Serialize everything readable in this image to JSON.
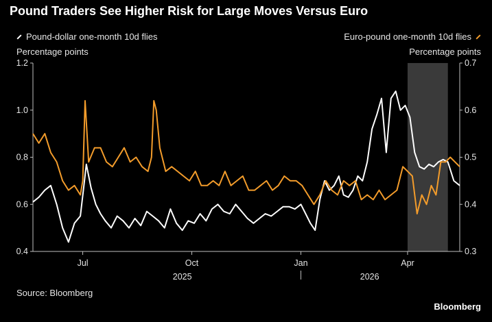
{
  "title": "Pound Traders See Higher Risk for Large Moves Versus Euro",
  "source": "Source: Bloomberg",
  "brand": "Bloomberg",
  "colors": {
    "background": "#000000",
    "gbpusd": "#ffffff",
    "eurgbp": "#f39c2b",
    "shade": "#3a3a3a",
    "axis": "#bfbfbf"
  },
  "chart_data": {
    "type": "line",
    "title": "Pound Traders See Higher Risk for Large Moves Versus Euro",
    "x_domain": [
      "2025-05-20",
      "2026-05-15"
    ],
    "x_ticks": [
      {
        "date": "2025-07-01",
        "label": "Jul"
      },
      {
        "date": "2025-10-01",
        "label": "Oct"
      },
      {
        "date": "2026-01-01",
        "label": "Jan"
      },
      {
        "date": "2026-04-01",
        "label": "Apr"
      }
    ],
    "year_labels": [
      {
        "date": "2025-09-23",
        "label": "2025"
      },
      {
        "date": "2026-02-28",
        "label": "2026"
      }
    ],
    "year_divider_date": "2026-01-01",
    "left_axis": {
      "label": "Percentage points",
      "ylim": [
        0.4,
        1.2
      ],
      "ticks": [
        "0.4",
        "0.6",
        "0.8",
        "1.0",
        "1.2"
      ]
    },
    "right_axis": {
      "label": "Percentage points",
      "ylim": [
        0.3,
        0.7
      ],
      "ticks": [
        "0.3",
        "0.4",
        "0.5",
        "0.6",
        "0.7"
      ]
    },
    "shaded_range": [
      "2026-04-01",
      "2026-05-05"
    ],
    "series": [
      {
        "name": "Pound-dollar one-month 10d flies",
        "axis": "left",
        "x": [
          "2025-05-20",
          "2025-05-25",
          "2025-05-30",
          "2025-06-04",
          "2025-06-09",
          "2025-06-14",
          "2025-06-19",
          "2025-06-24",
          "2025-06-29",
          "2025-07-02",
          "2025-07-04",
          "2025-07-08",
          "2025-07-12",
          "2025-07-16",
          "2025-07-20",
          "2025-07-25",
          "2025-07-30",
          "2025-08-04",
          "2025-08-09",
          "2025-08-14",
          "2025-08-19",
          "2025-08-24",
          "2025-08-29",
          "2025-09-03",
          "2025-09-08",
          "2025-09-13",
          "2025-09-18",
          "2025-09-23",
          "2025-09-28",
          "2025-10-03",
          "2025-10-08",
          "2025-10-13",
          "2025-10-18",
          "2025-10-23",
          "2025-10-28",
          "2025-11-02",
          "2025-11-07",
          "2025-11-12",
          "2025-11-17",
          "2025-11-22",
          "2025-11-27",
          "2025-12-02",
          "2025-12-07",
          "2025-12-12",
          "2025-12-17",
          "2025-12-22",
          "2025-12-27",
          "2026-01-01",
          "2026-01-05",
          "2026-01-09",
          "2026-01-13",
          "2026-01-17",
          "2026-01-21",
          "2026-01-25",
          "2026-01-29",
          "2026-02-02",
          "2026-02-06",
          "2026-02-10",
          "2026-02-14",
          "2026-02-18",
          "2026-02-22",
          "2026-02-26",
          "2026-03-02",
          "2026-03-06",
          "2026-03-10",
          "2026-03-14",
          "2026-03-18",
          "2026-03-22",
          "2026-03-26",
          "2026-03-30",
          "2026-04-03",
          "2026-04-07",
          "2026-04-11",
          "2026-04-15",
          "2026-04-19",
          "2026-04-23",
          "2026-04-27",
          "2026-05-01",
          "2026-05-05",
          "2026-05-10",
          "2026-05-15"
        ],
        "values": [
          0.61,
          0.63,
          0.66,
          0.68,
          0.6,
          0.5,
          0.44,
          0.52,
          0.55,
          0.68,
          0.77,
          0.67,
          0.6,
          0.56,
          0.53,
          0.5,
          0.55,
          0.53,
          0.5,
          0.54,
          0.51,
          0.57,
          0.55,
          0.53,
          0.5,
          0.58,
          0.52,
          0.49,
          0.53,
          0.52,
          0.56,
          0.53,
          0.58,
          0.6,
          0.57,
          0.56,
          0.6,
          0.57,
          0.54,
          0.52,
          0.54,
          0.56,
          0.55,
          0.57,
          0.59,
          0.59,
          0.58,
          0.6,
          0.56,
          0.52,
          0.49,
          0.62,
          0.7,
          0.66,
          0.68,
          0.72,
          0.64,
          0.63,
          0.66,
          0.72,
          0.7,
          0.78,
          0.92,
          0.98,
          1.05,
          0.82,
          1.05,
          1.08,
          1.0,
          1.02,
          0.97,
          0.82,
          0.76,
          0.75,
          0.77,
          0.76,
          0.78,
          0.79,
          0.78,
          0.7,
          0.68
        ]
      },
      {
        "name": "Euro-pound one-month 10d flies",
        "axis": "right",
        "x": [
          "2025-05-20",
          "2025-05-25",
          "2025-05-30",
          "2025-06-04",
          "2025-06-09",
          "2025-06-14",
          "2025-06-19",
          "2025-06-24",
          "2025-06-29",
          "2025-07-01",
          "2025-07-03",
          "2025-07-06",
          "2025-07-11",
          "2025-07-16",
          "2025-07-21",
          "2025-07-26",
          "2025-07-31",
          "2025-08-05",
          "2025-08-10",
          "2025-08-15",
          "2025-08-20",
          "2025-08-25",
          "2025-08-28",
          "2025-08-30",
          "2025-09-01",
          "2025-09-04",
          "2025-09-09",
          "2025-09-14",
          "2025-09-19",
          "2025-09-24",
          "2025-09-29",
          "2025-10-04",
          "2025-10-09",
          "2025-10-14",
          "2025-10-19",
          "2025-10-24",
          "2025-10-29",
          "2025-11-03",
          "2025-11-08",
          "2025-11-13",
          "2025-11-18",
          "2025-11-23",
          "2025-11-28",
          "2025-12-03",
          "2025-12-08",
          "2025-12-13",
          "2025-12-18",
          "2025-12-23",
          "2025-12-28",
          "2026-01-02",
          "2026-01-07",
          "2026-01-12",
          "2026-01-17",
          "2026-01-22",
          "2026-01-27",
          "2026-02-01",
          "2026-02-06",
          "2026-02-11",
          "2026-02-16",
          "2026-02-21",
          "2026-02-26",
          "2026-03-03",
          "2026-03-08",
          "2026-03-13",
          "2026-03-18",
          "2026-03-23",
          "2026-03-28",
          "2026-04-01",
          "2026-04-05",
          "2026-04-09",
          "2026-04-13",
          "2026-04-17",
          "2026-04-21",
          "2026-04-25",
          "2026-04-29",
          "2026-05-03",
          "2026-05-07",
          "2026-05-11",
          "2026-05-15"
        ],
        "values": [
          0.55,
          0.53,
          0.55,
          0.51,
          0.49,
          0.45,
          0.43,
          0.44,
          0.42,
          0.45,
          0.62,
          0.49,
          0.52,
          0.52,
          0.49,
          0.48,
          0.5,
          0.52,
          0.49,
          0.5,
          0.48,
          0.47,
          0.5,
          0.62,
          0.6,
          0.52,
          0.47,
          0.48,
          0.47,
          0.46,
          0.45,
          0.47,
          0.44,
          0.44,
          0.45,
          0.44,
          0.47,
          0.44,
          0.45,
          0.46,
          0.43,
          0.43,
          0.44,
          0.45,
          0.43,
          0.44,
          0.46,
          0.45,
          0.45,
          0.44,
          0.42,
          0.4,
          0.42,
          0.45,
          0.43,
          0.42,
          0.45,
          0.44,
          0.45,
          0.41,
          0.42,
          0.41,
          0.43,
          0.41,
          0.42,
          0.43,
          0.48,
          0.47,
          0.46,
          0.38,
          0.42,
          0.4,
          0.44,
          0.42,
          0.49,
          0.49,
          0.5,
          0.49,
          0.48
        ]
      }
    ]
  }
}
